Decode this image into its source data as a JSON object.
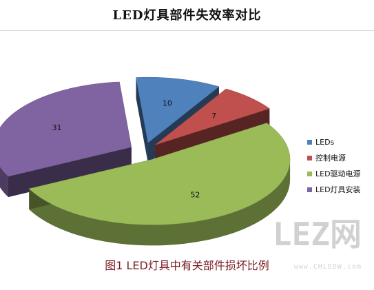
{
  "chart_data": {
    "type": "pie",
    "title": "LED灯具部件失效率对比",
    "categories": [
      "LEDs",
      "控制电源",
      "LED驱动电源",
      "LED灯具安装"
    ],
    "values": [
      10,
      7,
      52,
      31
    ],
    "colors": [
      "#4f81bd",
      "#c0504d",
      "#9bbb59",
      "#8064a2"
    ],
    "value_labels": [
      "10",
      "7",
      "52",
      "31"
    ],
    "legend_position": "right",
    "is_3d": true,
    "exploded": true
  },
  "caption": "图1  LED灯具中有关部件损坏比例",
  "watermark": {
    "text": "LEZ网",
    "url": "www.CHLEDW.com"
  }
}
